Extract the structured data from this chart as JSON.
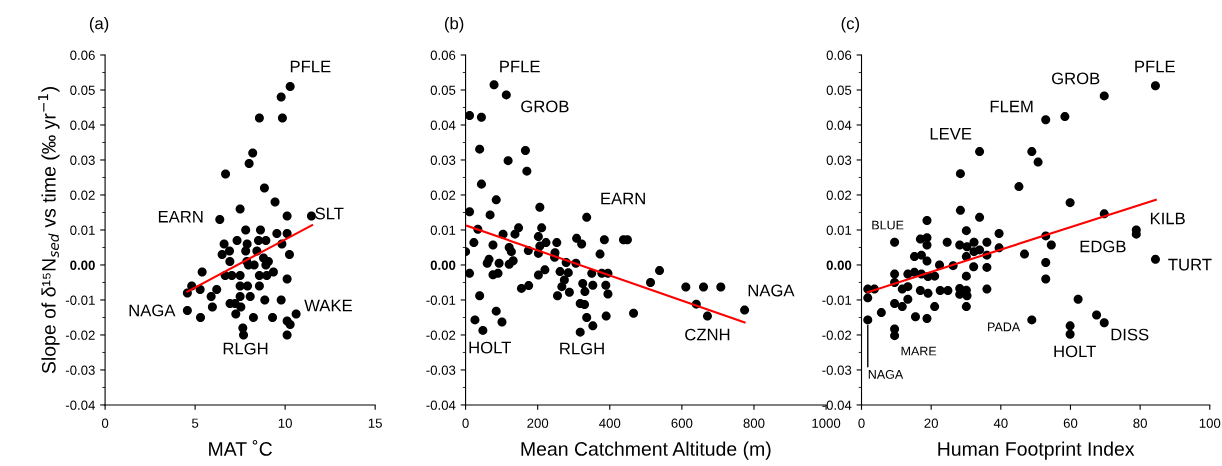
{
  "chart_data": [
    {
      "type": "scatter",
      "title": "(a)",
      "xlabel": "MAT ˚C",
      "ylabel": "Slope of δ¹⁵N$_{sed}$ vs time (‰ yr$^{−1}$)",
      "xlim": [
        0,
        15
      ],
      "xticks": [
        0,
        5,
        10,
        15
      ],
      "ylim": [
        -0.04,
        0.06
      ],
      "yticks": [
        {
          "value": -0.04,
          "label": "-0.04"
        },
        {
          "value": -0.03,
          "label": "-0.03"
        },
        {
          "value": -0.02,
          "label": "-0.02"
        },
        {
          "value": -0.01,
          "label": "-0.01"
        },
        {
          "value": 0,
          "label": "0.00"
        },
        {
          "value": 0.01,
          "label": "0.01"
        },
        {
          "value": 0.02,
          "label": "0.02"
        },
        {
          "value": 0.03,
          "label": "0.03"
        },
        {
          "value": 0.04,
          "label": "0.04"
        },
        {
          "value": 0.05,
          "label": "0.05"
        },
        {
          "value": 0.06,
          "label": "0.06"
        }
      ],
      "grid": false,
      "legend": false,
      "series": [
        {
          "type": "scatter",
          "marker": "circle",
          "color": "#000000",
          "x": [
            10.28,
            9.78,
            9.85,
            8.57,
            8.2,
            8.0,
            6.69,
            8.85,
            9.44,
            7.5,
            10.11,
            11.46,
            6.37,
            7.81,
            8.63,
            9.54,
            10.11,
            7.33,
            6.61,
            7.89,
            8.52,
            8.93,
            9.82,
            6.91,
            6.5,
            7.81,
            8.43,
            10.24,
            6.93,
            7.87,
            8.8,
            9.07,
            7.96,
            8.28,
            8.93,
            5.39,
            6.67,
            7.04,
            7.5,
            8.57,
            8.98,
            9.35,
            10.11,
            4.81,
            5.28,
            6.2,
            7.5,
            7.91,
            8.57,
            4.57,
            5.89,
            7.5,
            8.06,
            8.87,
            9.78,
            6.94,
            7.22,
            5.96,
            7.54,
            4.57,
            10.61,
            5.3,
            7.26,
            8.24,
            9.3,
            10.11,
            10.28,
            7.65,
            7.69,
            10.11
          ],
          "values": [
            0.051,
            0.048,
            0.042,
            0.042,
            0.032,
            0.029,
            0.026,
            0.022,
            0.018,
            0.016,
            0.014,
            0.014,
            0.013,
            0.01,
            0.01,
            0.009,
            0.009,
            0.007,
            0.006,
            0.006,
            0.007,
            0.007,
            0.006,
            0.004,
            0.003,
            0.004,
            0.004,
            0.003,
            0.001,
            0.001,
            0.002,
            0.001,
            0.0,
            0.0,
            0.0,
            -0.002,
            -0.003,
            -0.003,
            -0.003,
            -0.003,
            -0.003,
            -0.002,
            -0.004,
            -0.006,
            -0.007,
            -0.007,
            -0.006,
            -0.006,
            -0.006,
            -0.008,
            -0.009,
            -0.009,
            -0.009,
            -0.01,
            -0.01,
            -0.011,
            -0.011,
            -0.012,
            -0.012,
            -0.013,
            -0.014,
            -0.015,
            -0.014,
            -0.015,
            -0.015,
            -0.016,
            -0.017,
            -0.018,
            -0.02,
            -0.02
          ]
        },
        {
          "type": "line",
          "color": "#ff0000",
          "x": [
            4.57,
            11.5
          ],
          "values": [
            -0.0076,
            0.0114
          ]
        }
      ],
      "annotations": [
        "PFLE",
        "SLT",
        "EARN",
        "NAGA",
        "WAKE",
        "RLGH"
      ]
    },
    {
      "type": "scatter",
      "title": "(b)",
      "xlabel": "Mean Catchment Altitude (m)",
      "xlim": [
        0,
        1000
      ],
      "xticks": [
        0,
        200,
        400,
        600,
        800,
        1000
      ],
      "ylim": [
        -0.04,
        0.06
      ],
      "yticks": [
        {
          "value": -0.04,
          "label": "-0.04"
        },
        {
          "value": -0.03,
          "label": "-0.03"
        },
        {
          "value": -0.02,
          "label": "-0.02"
        },
        {
          "value": -0.01,
          "label": "-0.01"
        },
        {
          "value": 0,
          "label": "0.00"
        },
        {
          "value": 0.01,
          "label": "0.01"
        },
        {
          "value": 0.02,
          "label": "0.02"
        },
        {
          "value": 0.03,
          "label": "0.03"
        },
        {
          "value": 0.04,
          "label": "0.04"
        },
        {
          "value": 0.05,
          "label": "0.05"
        },
        {
          "value": 0.06,
          "label": "0.06"
        }
      ],
      "grid": false,
      "legend": false,
      "series": [
        {
          "type": "scatter",
          "marker": "circle",
          "color": "#000000",
          "x": [
            79,
            113,
            11,
            44,
            39,
            166,
            118,
            170,
            44,
            85,
            11,
            206,
            68,
            336,
            34,
            147,
            211,
            104,
            137,
            202,
            23,
            76,
            223,
            253,
            308,
            322,
            385,
            438,
            449,
            206,
            121,
            0,
            127,
            174,
            202,
            248,
            132,
            65,
            247,
            373,
            60,
            93,
            121,
            279,
            306,
            11,
            76,
            90,
            202,
            220,
            262,
            285,
            350,
            378,
            395,
            538,
            513,
            155,
            175,
            274,
            267,
            325,
            353,
            389,
            611,
            660,
            708,
            39,
            255,
            288,
            331,
            395,
            318,
            330,
            640,
            774,
            85,
            466,
            26,
            101,
            336,
            390,
            671,
            48,
            353,
            318
          ],
          "values": [
            0.0515,
            0.0486,
            0.0427,
            0.0422,
            0.0331,
            0.0327,
            0.0298,
            0.0268,
            0.0231,
            0.0186,
            0.0152,
            0.0165,
            0.0143,
            0.0136,
            0.0102,
            0.0106,
            0.0106,
            0.0088,
            0.0088,
            0.0081,
            0.0064,
            0.0057,
            0.0064,
            0.0064,
            0.0076,
            0.006,
            0.0072,
            0.0072,
            0.0072,
            0.0054,
            0.005,
            0.0038,
            0.0038,
            0.0041,
            0.0033,
            0.0035,
            0.0012,
            0.0016,
            0.0022,
            0.0031,
            0.0005,
            0.0005,
            0.0002,
            0.0007,
            0.0005,
            -0.0024,
            -0.0028,
            -0.0024,
            -0.0029,
            -0.0014,
            -0.0019,
            -0.0022,
            -0.0024,
            -0.0024,
            -0.0024,
            -0.0016,
            -0.005,
            -0.0067,
            -0.0059,
            -0.0043,
            -0.0062,
            -0.0053,
            -0.0058,
            -0.0058,
            -0.0063,
            -0.0063,
            -0.0063,
            -0.0088,
            -0.0088,
            -0.0078,
            -0.0076,
            -0.0083,
            -0.011,
            -0.0113,
            -0.0112,
            -0.0129,
            -0.0132,
            -0.0138,
            -0.0157,
            -0.0163,
            -0.015,
            -0.0146,
            -0.0146,
            -0.0187,
            -0.0174,
            -0.0192
          ]
        },
        {
          "type": "line",
          "color": "#ff0000",
          "x": [
            4,
            774
          ],
          "values": [
            0.0112,
            -0.0164
          ]
        }
      ],
      "annotations": [
        "PFLE",
        "GROB",
        "EARN",
        "NAGA",
        "CZNH",
        "HOLT",
        "RLGH"
      ]
    },
    {
      "type": "scatter",
      "title": "(c)",
      "xlabel": "Human Footprint Index",
      "xlim": [
        0,
        100
      ],
      "xticks": [
        0,
        20,
        40,
        60,
        80,
        100
      ],
      "ylim": [
        -0.04,
        0.06
      ],
      "yticks": [
        {
          "value": -0.04,
          "label": "-0.04"
        },
        {
          "value": -0.03,
          "label": "-0.03"
        },
        {
          "value": -0.02,
          "label": "-0.02"
        },
        {
          "value": -0.01,
          "label": "-0.01"
        },
        {
          "value": 0,
          "label": "0.00"
        },
        {
          "value": 0.01,
          "label": "0.01"
        },
        {
          "value": 0.02,
          "label": "0.02"
        },
        {
          "value": 0.03,
          "label": "0.03"
        },
        {
          "value": 0.04,
          "label": "0.04"
        },
        {
          "value": 0.05,
          "label": "0.05"
        },
        {
          "value": 0.06,
          "label": "0.06"
        }
      ],
      "grid": false,
      "legend": false,
      "series": [
        {
          "type": "scatter",
          "marker": "circle",
          "color": "#000000",
          "x": [
            84.4,
            69.7,
            58.4,
            52.9,
            33.9,
            48.9,
            50.7,
            28.4,
            45.2,
            59.9,
            28.4,
            69.7,
            33.9,
            18.8,
            78.9,
            78.9,
            30.1,
            39.5,
            9.5,
            16.9,
            18.8,
            18.8,
            24.6,
            28.2,
            30.3,
            32.3,
            36.0,
            39.5,
            52.9,
            54.5,
            15.2,
            17.2,
            18.8,
            22.4,
            26.3,
            32.3,
            33.9,
            36.0,
            30.1,
            46.8,
            84.4,
            52.9,
            32.2,
            36.0,
            9.5,
            13.3,
            15.2,
            17.2,
            19.1,
            21.0,
            30.1,
            9.5,
            13.3,
            11.7,
            1.8,
            3.7,
            52.9,
            16.9,
            19.1,
            22.6,
            24.8,
            28.2,
            30.1,
            28.2,
            30.3,
            36.0,
            1.8,
            13.3,
            9.5,
            11.7,
            21.0,
            30.1,
            62.2,
            5.7,
            15.5,
            18.8,
            1.8,
            48.9,
            67.5,
            69.7,
            59.9,
            59.9,
            9.5,
            9.5
          ],
          "values": [
            0.0512,
            0.0483,
            0.0424,
            0.0415,
            0.0324,
            0.0324,
            0.0294,
            0.0261,
            0.0224,
            0.0178,
            0.0156,
            0.0146,
            0.0136,
            0.0127,
            0.01,
            0.0088,
            0.0098,
            0.009,
            0.0065,
            0.0074,
            0.0078,
            0.0057,
            0.0065,
            0.0057,
            0.0052,
            0.0065,
            0.0065,
            0.0049,
            0.0083,
            0.0057,
            0.0024,
            0.0028,
            0.0011,
            0.0,
            -0.0002,
            0.0038,
            0.0043,
            0.0028,
            0.0024,
            0.0031,
            0.0016,
            0.0007,
            -0.0005,
            -0.0007,
            -0.0026,
            -0.0026,
            -0.0021,
            -0.0026,
            -0.0033,
            -0.0032,
            -0.0032,
            -0.005,
            -0.0062,
            -0.0069,
            -0.0069,
            -0.0069,
            -0.004,
            -0.0073,
            -0.0081,
            -0.0073,
            -0.0073,
            -0.0067,
            -0.0072,
            -0.0084,
            -0.0088,
            -0.0069,
            -0.0094,
            -0.0098,
            -0.011,
            -0.0119,
            -0.0119,
            -0.0119,
            -0.0098,
            -0.0136,
            -0.0148,
            -0.0153,
            -0.0157,
            -0.0157,
            -0.0143,
            -0.0165,
            -0.0174,
            -0.0198,
            -0.0183,
            -0.0202
          ]
        },
        {
          "type": "line",
          "color": "#ff0000",
          "x": [
            1.8,
            84.5
          ],
          "values": [
            -0.0078,
            0.0186
          ]
        }
      ],
      "annotations": [
        "PFLE",
        "GROB",
        "FLEM",
        "LEVE",
        "BLUE",
        "KILB",
        "EDGB",
        "TURT",
        "PADA",
        "MARE",
        "HOLT",
        "DISS",
        {
          "text": "NAGA",
          "x": 1.8,
          "y": -0.0157
        }
      ]
    }
  ]
}
